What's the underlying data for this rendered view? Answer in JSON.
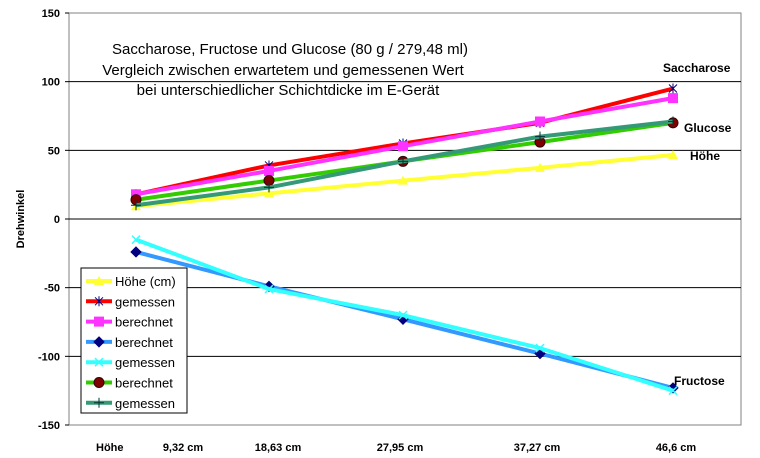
{
  "chart_data": {
    "type": "line",
    "title_lines": [
      "Saccharose, Fructose und Glucose (80 g / 279,48 ml)",
      "Vergleich zwischen erwartetem und gemessenen Wert",
      "bei unterschiedlicher Schichtdicke im E-Gerät"
    ],
    "ylabel": "Drehwinkel",
    "xlabel_prefix": "Höhe",
    "categories": [
      "9,32 cm",
      "18,63 cm",
      "27,95 cm",
      "37,27 cm",
      "46,6 cm"
    ],
    "ylim": [
      -150,
      150
    ],
    "yticks": [
      150,
      100,
      50,
      0,
      -50,
      -100,
      -150
    ],
    "grid": "horizontal",
    "legend_position": "bottom-left",
    "series": [
      {
        "name": "Höhe (cm)",
        "color": "#ffff33",
        "marker": "triangle",
        "values": [
          9.32,
          18.63,
          27.95,
          37.27,
          46.6
        ]
      },
      {
        "name": "gemessen",
        "color": "#ff0000",
        "marker": "star",
        "values": [
          18,
          39,
          55,
          70,
          95
        ]
      },
      {
        "name": "berechnet",
        "color": "#ff33ff",
        "marker": "square",
        "values": [
          18,
          35,
          53,
          71,
          88
        ]
      },
      {
        "name": "berechnet",
        "color": "#3399ff",
        "marker": "diamond",
        "values": [
          -24,
          -49,
          -73,
          -98,
          -123
        ]
      },
      {
        "name": "gemessen",
        "color": "#33ffff",
        "marker": "x",
        "values": [
          -15,
          -51,
          -70,
          -94,
          -125
        ]
      },
      {
        "name": "berechnet",
        "color": "#33cc00",
        "marker": "circle",
        "values": [
          14,
          28,
          42,
          56,
          70
        ]
      },
      {
        "name": "gemessen",
        "color": "#339977",
        "marker": "plus",
        "values": [
          10,
          23,
          42,
          60,
          71
        ]
      }
    ],
    "annotations": [
      {
        "text": "Saccharose",
        "x": 4,
        "y": 110
      },
      {
        "text": "Glucose",
        "x": 4,
        "y": 66
      },
      {
        "text": "Höhe",
        "x": 4,
        "y": 46
      },
      {
        "text": "Fructose",
        "x": 4,
        "y": -118
      }
    ]
  }
}
